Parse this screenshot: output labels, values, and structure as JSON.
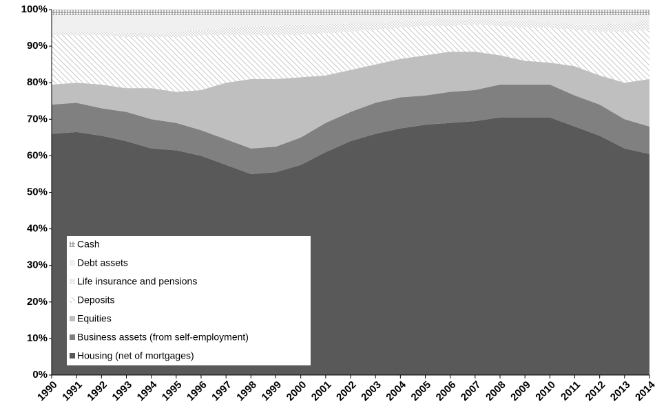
{
  "chart_data": {
    "type": "stacked_area",
    "categories": [
      "1990",
      "1991",
      "1992",
      "1993",
      "1994",
      "1995",
      "1996",
      "1997",
      "1998",
      "1999",
      "2000",
      "2001",
      "2002",
      "2003",
      "2004",
      "2005",
      "2006",
      "2007",
      "2008",
      "2009",
      "2010",
      "2011",
      "2012",
      "2013",
      "2014"
    ],
    "series": [
      {
        "name": "Housing (net of mortgages)",
        "color": "#595959",
        "pattern": "solid",
        "values": [
          66,
          66.5,
          65.5,
          64,
          62,
          61.5,
          60,
          57.5,
          55,
          55.5,
          57.5,
          61,
          64,
          66,
          67.5,
          68.5,
          69,
          69.5,
          70.5,
          70.5,
          70.5,
          68,
          65.5,
          62,
          60.5
        ]
      },
      {
        "name": "Business assets (from self-employment)",
        "color": "#808080",
        "pattern": "solid",
        "values": [
          8,
          8,
          7.5,
          8,
          8,
          7.5,
          7,
          7,
          7,
          7,
          7.5,
          8,
          8,
          8.5,
          8.5,
          8,
          8.5,
          8.5,
          9,
          9,
          9,
          8.5,
          8.5,
          8,
          7.5
        ]
      },
      {
        "name": "Equities",
        "color": "#bfbfbf",
        "pattern": "solid",
        "values": [
          5.5,
          5.5,
          6.5,
          6.5,
          8.5,
          8.5,
          11,
          15.5,
          19,
          18.5,
          16.5,
          13,
          11.5,
          10.5,
          10.5,
          11,
          11,
          10.5,
          8,
          6.5,
          6,
          8,
          8,
          10,
          13
        ]
      },
      {
        "name": "Deposits",
        "color": "#c8c8c8",
        "pattern": "diagonal",
        "values": [
          13.5,
          13,
          13.5,
          14,
          14,
          15,
          15,
          13,
          12,
          12,
          11.5,
          11.5,
          10.5,
          9.5,
          8.5,
          8,
          7,
          7.5,
          8,
          9,
          9.5,
          10,
          12,
          14,
          13.5
        ]
      },
      {
        "name": "Life insurance and pensions",
        "color": "#b0b0b0",
        "pattern": "dots",
        "values": [
          1,
          1,
          1,
          1,
          1,
          1.5,
          1.5,
          2,
          2.5,
          2.5,
          3,
          2.5,
          2.5,
          2,
          2,
          1.5,
          2,
          1.5,
          1.5,
          2,
          1.5,
          1.5,
          2,
          2.5,
          2.5
        ]
      },
      {
        "name": "Debt assets",
        "color": "#f0f0f0",
        "pattern": "solid",
        "values": [
          4.5,
          4.5,
          4.5,
          5,
          5,
          4.5,
          4,
          3.5,
          3,
          3,
          2.5,
          2.5,
          2,
          2,
          1.5,
          1.5,
          1,
          1,
          1.5,
          1.5,
          2,
          2.5,
          2.5,
          2,
          1.5
        ]
      },
      {
        "name": "Cash",
        "color": "#7a7a7a",
        "pattern": "cross",
        "values": [
          1.5,
          1.5,
          1.5,
          1.5,
          1.5,
          1.5,
          1.5,
          1.5,
          1.5,
          1.5,
          1.5,
          1.5,
          1.5,
          1.5,
          1.5,
          1.5,
          1.5,
          1.5,
          1.5,
          1.5,
          1.5,
          1.5,
          1.5,
          1.5,
          1.5
        ]
      }
    ],
    "ylim": [
      0,
      100
    ],
    "yticks": [
      {
        "value": 0,
        "label": "0%"
      },
      {
        "value": 10,
        "label": "10%"
      },
      {
        "value": 20,
        "label": "20%"
      },
      {
        "value": 30,
        "label": "30%"
      },
      {
        "value": 40,
        "label": "40%"
      },
      {
        "value": 50,
        "label": "50%"
      },
      {
        "value": 60,
        "label": "60%"
      },
      {
        "value": 70,
        "label": "70%"
      },
      {
        "value": 80,
        "label": "80%"
      },
      {
        "value": 90,
        "label": "90%"
      },
      {
        "value": 100,
        "label": "100%"
      }
    ],
    "legend": "lower left"
  }
}
